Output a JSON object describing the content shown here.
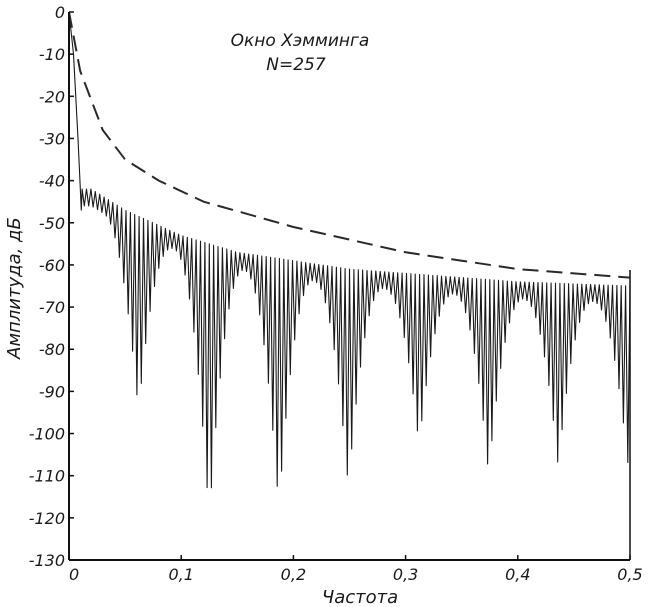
{
  "chart_data": {
    "type": "line",
    "title": "",
    "annotations": [
      "Окно Хэмминга",
      "N=257"
    ],
    "xlabel": "Частота",
    "ylabel": "Амплитуда, дБ",
    "xlim": [
      0,
      0.5
    ],
    "ylim": [
      -130,
      0
    ],
    "xticks": [
      0,
      0.1,
      0.2,
      0.3,
      0.4,
      0.5
    ],
    "xtick_labels": [
      "0",
      "0,1",
      "0,2",
      "0,3",
      "0,4",
      "0,5"
    ],
    "yticks": [
      0,
      -10,
      -20,
      -30,
      -40,
      -50,
      -60,
      -70,
      -80,
      -90,
      -100,
      -110,
      -120,
      -130
    ],
    "ytick_labels": [
      "0",
      "-10",
      "-20",
      "-30",
      "-40",
      "-50",
      "-60",
      "-70",
      "-80",
      "-90",
      "-100",
      "-110",
      "-120",
      "-130"
    ],
    "grid": false,
    "colors": {
      "curve": "#1a1a1a",
      "envelope": "#2a2a2a",
      "frame": "#111111"
    },
    "series": [
      {
        "style": "solid",
        "description_points": {
          "mainlobe": [
            [
              0,
              0
            ],
            [
              0.004,
              -10
            ],
            [
              0.008,
              -30
            ],
            [
              0.011,
              -47
            ]
          ],
          "sidelobe_peaks": [
            [
              0.02,
              -42
            ],
            [
              0.05,
              -47
            ],
            [
              0.1,
              -53
            ],
            [
              0.15,
              -57
            ],
            [
              0.2,
              -59
            ],
            [
              0.25,
              -61
            ],
            [
              0.3,
              -62
            ],
            [
              0.35,
              -63
            ],
            [
              0.4,
              -64
            ],
            [
              0.45,
              -64.5
            ],
            [
              0.5,
              -65
            ]
          ],
          "trough_nulls": [
            [
              0.062,
              -95
            ],
            [
              0.125,
              -121
            ],
            [
              0.187,
              -118
            ],
            [
              0.249,
              -113
            ],
            [
              0.312,
              -103
            ],
            [
              0.374,
              -110
            ],
            [
              0.436,
              -108
            ],
            [
              0.498,
              -107
            ]
          ]
        }
      },
      {
        "style": "dashed",
        "points": [
          [
            0.0,
            0
          ],
          [
            0.01,
            -14
          ],
          [
            0.03,
            -28
          ],
          [
            0.05,
            -35
          ],
          [
            0.08,
            -40
          ],
          [
            0.12,
            -45
          ],
          [
            0.16,
            -48
          ],
          [
            0.2,
            -51
          ],
          [
            0.25,
            -54
          ],
          [
            0.3,
            -57
          ],
          [
            0.35,
            -59
          ],
          [
            0.4,
            -61
          ],
          [
            0.45,
            -62
          ],
          [
            0.5,
            -63
          ]
        ]
      }
    ]
  }
}
